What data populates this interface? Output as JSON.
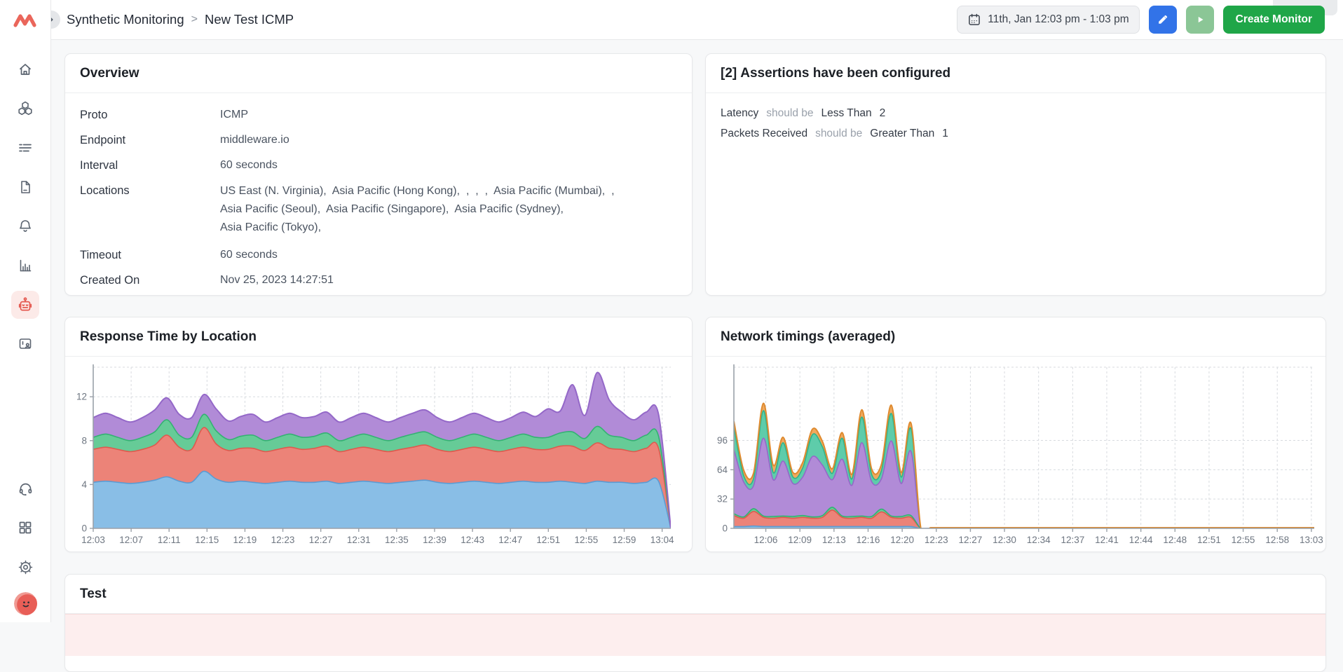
{
  "header": {
    "breadcrumb": {
      "section": "Synthetic Monitoring",
      "separator": ">",
      "current": "New Test ICMP"
    },
    "date_range": "11th, Jan 12:03 pm - 1:03 pm",
    "create_monitor_label": "Create Monitor",
    "icons": [
      "calendar-icon",
      "pencil-icon",
      "play-icon",
      "chevron-right-icon"
    ]
  },
  "sidebar": {
    "icons": [
      "middleware-logo",
      "home-icon",
      "infrastructure-icon",
      "logs-icon",
      "document-icon",
      "bell-icon",
      "bar-chart-icon",
      "synthetic-robot-icon",
      "rum-icon",
      "headset-icon",
      "apps-grid-icon",
      "gear-icon",
      "user-avatar"
    ],
    "active_item": "synthetic-robot-icon"
  },
  "overview": {
    "title": "Overview",
    "rows": [
      {
        "label": "Proto",
        "value": "ICMP"
      },
      {
        "label": "Endpoint",
        "value": "middleware.io"
      },
      {
        "label": "Interval",
        "value": "60 seconds"
      },
      {
        "label": "Locations",
        "value_lines": [
          "US East (N. Virginia),  Asia Pacific (Hong Kong),  ,  ,  ,  Asia Pacific (Mumbai),  ,",
          "Asia Pacific (Seoul),  Asia Pacific (Singapore),  Asia Pacific (Sydney),",
          "Asia Pacific (Tokyo),"
        ]
      },
      {
        "label": "Timeout",
        "value": "60 seconds"
      },
      {
        "label": "Created On",
        "value": "Nov 25, 2023 14:27:51"
      }
    ]
  },
  "assertions": {
    "title_count": "[2]",
    "title_rest": "Assertions have been configured",
    "rows": [
      {
        "metric": "Latency",
        "connector": "should be",
        "operator": "Less Than",
        "value": "2"
      },
      {
        "metric": "Packets Received",
        "connector": "should be",
        "operator": "Greater Than",
        "value": "1"
      }
    ]
  },
  "test_section": {
    "title": "Test"
  },
  "ui_colors": {
    "accent_blue": "#3273e8",
    "create_green": "#1fa648",
    "play_green": "#8bc696",
    "brand_red": "#e85549",
    "active_item_bg": "#fceae8",
    "test_row_pink": "#fdeeee"
  },
  "chart_data": [
    {
      "type": "area",
      "stacked": true,
      "title": "Response Time by Location",
      "xlabel": "",
      "ylabel": "",
      "ylim": [
        0,
        14.7
      ],
      "yticks": [
        0,
        4,
        8,
        12
      ],
      "grid": true,
      "legend": "none",
      "x_labels": [
        "12:03",
        "12:07",
        "12:11",
        "12:15",
        "12:19",
        "12:23",
        "12:27",
        "12:31",
        "12:35",
        "12:39",
        "12:43",
        "12:47",
        "12:51",
        "12:55",
        "12:59",
        "13:04"
      ],
      "x_label_span": [
        0,
        0.985
      ],
      "series": [
        {
          "name": "layer-blue",
          "color": "#89bee6",
          "stroke": "#5b9bd3",
          "values": [
            4.2,
            4.3,
            4.2,
            4.1,
            4.2,
            4.4,
            4.7,
            4.3,
            4.2,
            5.2,
            4.5,
            4.2,
            4.3,
            4.2,
            4.1,
            4.2,
            4.3,
            4.2,
            4.2,
            4.3,
            4.1,
            4.2,
            4.3,
            4.2,
            4.1,
            4.2,
            4.3,
            4.4,
            4.2,
            4.1,
            4.2,
            4.3,
            4.2,
            4.1,
            4.2,
            4.3,
            4.2,
            4.2,
            4.3,
            4.2,
            4.1,
            4.3,
            4.2,
            4.2,
            4.1,
            4.2,
            4.3,
            0
          ]
        },
        {
          "name": "layer-salmon",
          "color": "#ec8378",
          "stroke": "#de5a4e",
          "values": [
            3.0,
            3.1,
            3.0,
            2.9,
            3.0,
            3.2,
            3.8,
            3.1,
            3.0,
            4.0,
            3.2,
            2.9,
            3.0,
            3.1,
            2.9,
            3.0,
            3.1,
            3.0,
            3.1,
            3.2,
            2.9,
            3.0,
            3.1,
            3.0,
            2.9,
            3.0,
            3.1,
            3.2,
            3.0,
            2.9,
            3.0,
            3.1,
            3.0,
            2.9,
            3.0,
            3.1,
            3.0,
            3.0,
            3.2,
            3.3,
            3.0,
            3.5,
            3.1,
            3.0,
            2.9,
            3.1,
            3.0,
            0
          ]
        },
        {
          "name": "layer-green",
          "color": "#66cb97",
          "stroke": "#33b272",
          "values": [
            1.1,
            1.2,
            1.1,
            1.0,
            1.1,
            1.2,
            1.4,
            1.1,
            1.1,
            1.2,
            1.2,
            1.0,
            1.1,
            1.2,
            1.0,
            1.1,
            1.2,
            1.1,
            1.1,
            1.2,
            1.0,
            1.1,
            1.2,
            1.1,
            1.0,
            1.1,
            1.2,
            1.2,
            1.1,
            1.0,
            1.1,
            1.2,
            1.1,
            1.0,
            1.1,
            1.2,
            1.1,
            1.1,
            1.2,
            1.3,
            1.1,
            1.5,
            1.2,
            1.1,
            1.0,
            1.2,
            1.1,
            0
          ]
        },
        {
          "name": "layer-purple",
          "color": "#b18bd7",
          "stroke": "#9468c8",
          "values": [
            1.8,
            1.9,
            1.8,
            1.7,
            1.8,
            2.0,
            2.0,
            1.9,
            1.8,
            1.8,
            2.0,
            1.7,
            1.8,
            1.9,
            1.7,
            1.8,
            1.9,
            1.8,
            1.8,
            1.9,
            1.7,
            1.8,
            1.9,
            1.8,
            1.7,
            1.8,
            1.9,
            2.0,
            1.8,
            1.7,
            1.8,
            1.9,
            1.8,
            1.7,
            1.8,
            2.0,
            1.9,
            2.6,
            2.0,
            4.3,
            2.1,
            4.9,
            3.2,
            2.3,
            1.9,
            2.1,
            2.0,
            0
          ]
        }
      ]
    },
    {
      "type": "area",
      "stacked": true,
      "title": "Network timings (averaged)",
      "xlabel": "",
      "ylabel": "",
      "ylim": [
        0,
        176
      ],
      "yticks": [
        0,
        32,
        64,
        96
      ],
      "grid": true,
      "legend": "none",
      "x_labels": [
        "12:06",
        "12:09",
        "12:13",
        "12:16",
        "12:20",
        "12:23",
        "12:27",
        "12:30",
        "12:34",
        "12:37",
        "12:41",
        "12:44",
        "12:48",
        "12:51",
        "12:55",
        "12:58",
        "13:03"
      ],
      "x_label_span": [
        0.055,
        0.995
      ],
      "series": [
        {
          "name": "layer-blue",
          "color": "#89bee6",
          "stroke": "#5b9bd3",
          "values": [
            2,
            2,
            2.5,
            2,
            2,
            2,
            2,
            2,
            2,
            2,
            2,
            2,
            2,
            2,
            2,
            2,
            2,
            2,
            2,
            0,
            0,
            0,
            0,
            0,
            0,
            0,
            0,
            0,
            0,
            0,
            0,
            0,
            0,
            0,
            0,
            0,
            0,
            0,
            0,
            0,
            0,
            0,
            0,
            0,
            0,
            0,
            0,
            0,
            0,
            0,
            0,
            0,
            0,
            0,
            0,
            0,
            0,
            0,
            0,
            0
          ]
        },
        {
          "name": "layer-salmon",
          "color": "#ec8378",
          "stroke": "#de5a4e",
          "values": [
            12,
            9,
            16,
            10,
            9,
            10,
            9,
            10,
            9,
            10,
            18,
            10,
            9,
            10,
            9,
            16,
            10,
            9,
            10,
            0,
            0,
            0,
            0,
            0,
            0,
            0,
            0,
            0,
            0,
            0,
            0,
            0,
            0,
            0,
            0,
            0,
            0,
            0,
            0,
            0,
            0,
            0,
            0,
            0,
            0,
            0,
            0,
            0,
            0,
            0,
            0,
            0,
            0,
            0,
            0,
            0,
            0,
            0,
            0,
            0
          ]
        },
        {
          "name": "layer-green",
          "color": "#66cb97",
          "stroke": "#33b272",
          "values": [
            2,
            1.5,
            3,
            1.5,
            2,
            1.5,
            2,
            2,
            1.5,
            2,
            3,
            1.5,
            2,
            1.5,
            2,
            3,
            1.5,
            2,
            2,
            0,
            0,
            0,
            0,
            0,
            0,
            0,
            0,
            0,
            0,
            0,
            0,
            0,
            0,
            0,
            0,
            0,
            0,
            0,
            0,
            0,
            0,
            0,
            0,
            0,
            0,
            0,
            0,
            0,
            0,
            0,
            0,
            0,
            0,
            0,
            0,
            0,
            0,
            0,
            0,
            0
          ]
        },
        {
          "name": "layer-purple",
          "color": "#b18bd7",
          "stroke": "#9468c8",
          "values": [
            70,
            38,
            25,
            85,
            40,
            60,
            36,
            42,
            66,
            55,
            30,
            62,
            34,
            80,
            38,
            33,
            82,
            36,
            70,
            0,
            0,
            0,
            0,
            0,
            0,
            0,
            0,
            0,
            0,
            0,
            0,
            0,
            0,
            0,
            0,
            0,
            0,
            0,
            0,
            0,
            0,
            0,
            0,
            0,
            0,
            0,
            0,
            0,
            0,
            0,
            0,
            0,
            0,
            0,
            0,
            0,
            0,
            0,
            0,
            0
          ]
        },
        {
          "name": "layer-teal",
          "color": "#5eccaa",
          "stroke": "#2fb389",
          "values": [
            25,
            7,
            8,
            30,
            8,
            20,
            7,
            10,
            24,
            20,
            7,
            23,
            7,
            28,
            8,
            9,
            30,
            7,
            25,
            0,
            0,
            0,
            0,
            0,
            0,
            0,
            0,
            0,
            0,
            0,
            0,
            0,
            0,
            0,
            0,
            0,
            0,
            0,
            0,
            0,
            0,
            0,
            0,
            0,
            0,
            0,
            0,
            0,
            0,
            0,
            0,
            0,
            0,
            0,
            0,
            0,
            0,
            0,
            0,
            0
          ]
        },
        {
          "name": "layer-orange",
          "color": "#f0a95e",
          "stroke": "#de8a2f",
          "values": [
            6,
            6,
            6,
            8,
            8,
            6,
            5,
            6,
            6,
            6,
            5,
            6,
            5,
            8,
            6,
            7,
            9,
            5,
            6,
            0.8,
            0.8,
            0.8,
            0.8,
            0.8,
            0.8,
            0.8,
            0.8,
            0.8,
            0.8,
            0.8,
            0.8,
            0.8,
            0.8,
            0.8,
            0.8,
            0.8,
            0.8,
            0.8,
            0.8,
            0.8,
            0.8,
            0.8,
            0.8,
            0.8,
            0.8,
            0.8,
            0.8,
            0.8,
            0.8,
            0.8,
            0.8,
            0.8,
            0.8,
            0.8,
            0.8,
            0.8,
            0.8,
            0.8,
            0.8,
            0.8
          ]
        }
      ]
    }
  ]
}
